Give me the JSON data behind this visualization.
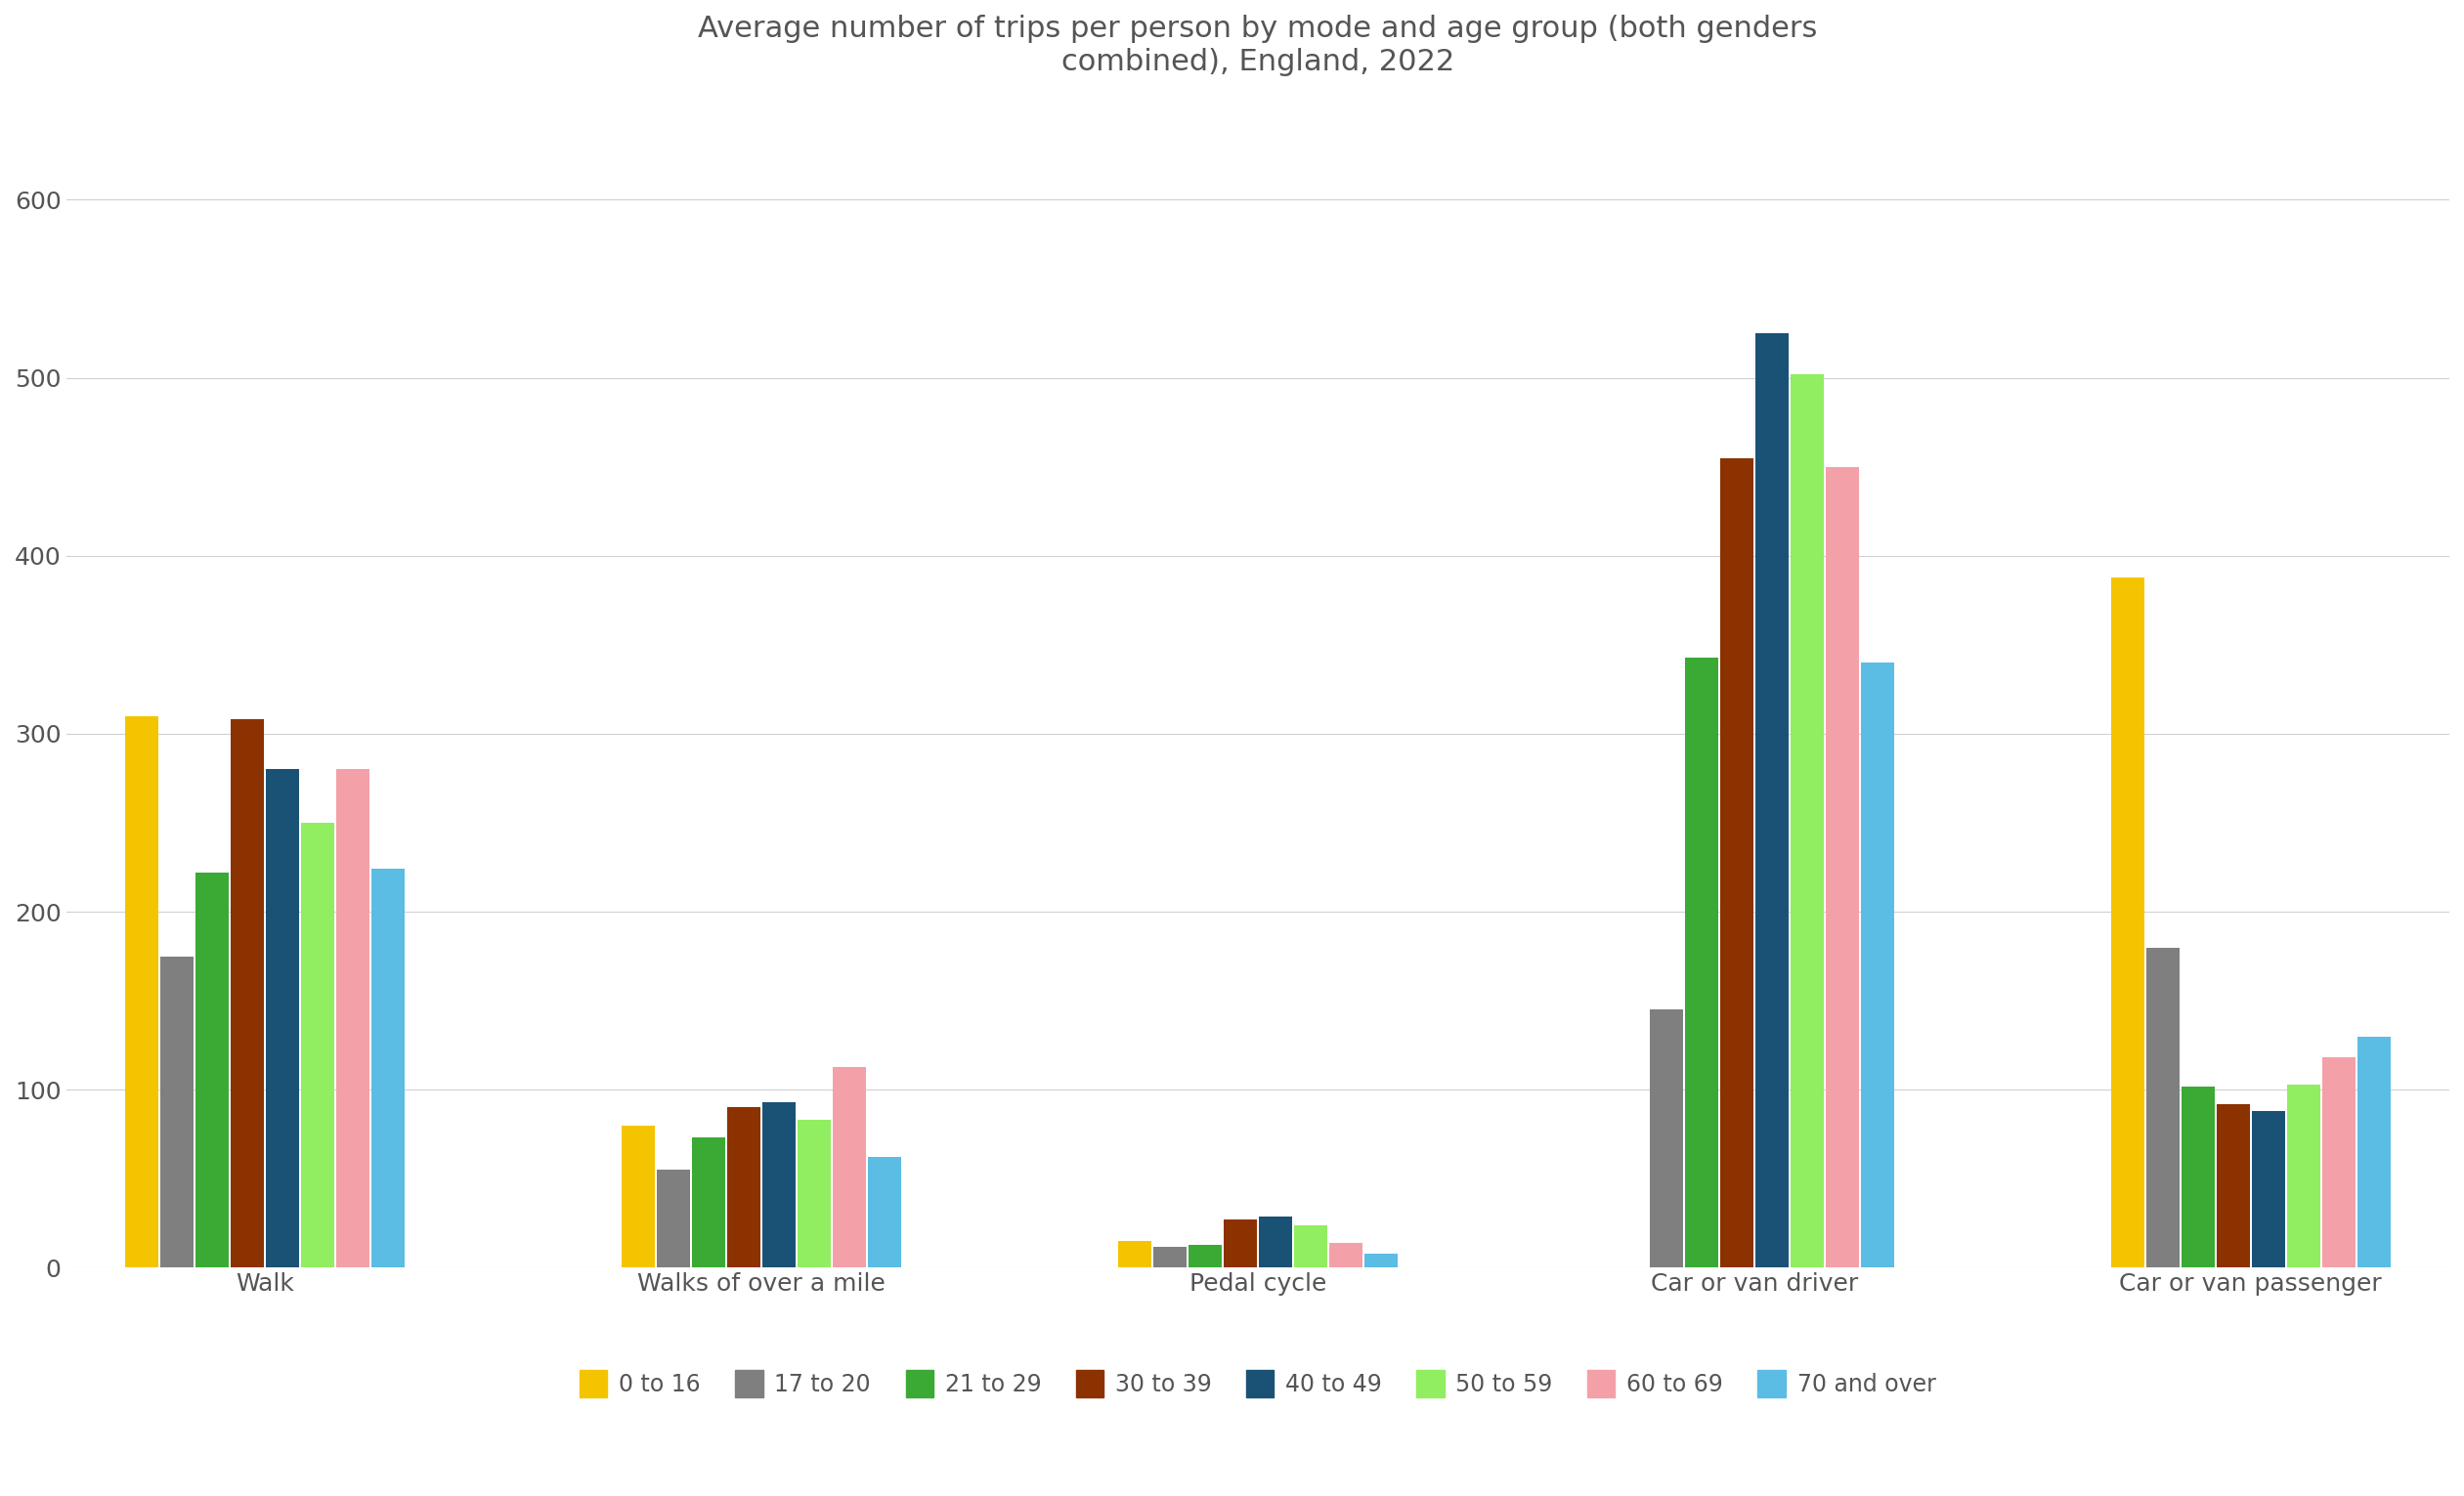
{
  "title": "Average number of trips per person by mode and age group (both genders\ncombined), England, 2022",
  "categories": [
    "Walk",
    "Walks of over a mile",
    "Pedal cycle",
    "Car or van driver",
    "Car or van passenger"
  ],
  "age_groups": [
    "0 to 16",
    "17 to 20",
    "21 to 29",
    "30 to 39",
    "40 to 49",
    "50 to 59",
    "60 to 69",
    "70 and over"
  ],
  "colors": [
    "#F5C400",
    "#7F7F7F",
    "#3AAA35",
    "#8B3200",
    "#1A5276",
    "#90EE60",
    "#F4A0A8",
    "#5BBDE4"
  ],
  "values": {
    "Walk": [
      310,
      175,
      222,
      308,
      280,
      250,
      280,
      224
    ],
    "Walks of over a mile": [
      80,
      55,
      73,
      90,
      93,
      83,
      113,
      62
    ],
    "Pedal cycle": [
      15,
      12,
      13,
      27,
      29,
      24,
      14,
      8
    ],
    "Car or van driver": [
      0,
      145,
      343,
      455,
      525,
      502,
      450,
      340
    ],
    "Car or van passenger": [
      388,
      180,
      102,
      92,
      88,
      103,
      118,
      130
    ]
  },
  "ylim": [
    0,
    650
  ],
  "yticks": [
    0,
    100,
    200,
    300,
    400,
    500,
    600
  ],
  "background_color": "#FFFFFF",
  "grid_color": "#D0D0D0",
  "title_fontsize": 22,
  "tick_fontsize": 18,
  "legend_fontsize": 17
}
